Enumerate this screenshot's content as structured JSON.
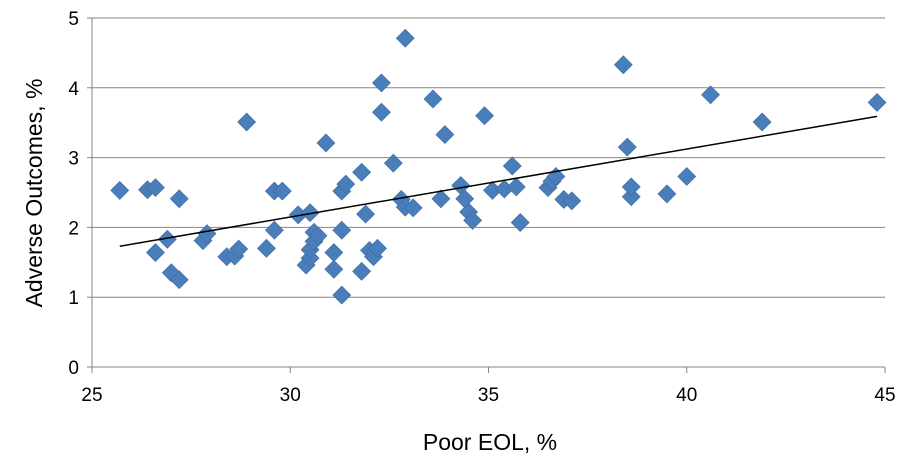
{
  "chart_data": {
    "type": "scatter",
    "xlabel": "Poor EOL, %",
    "ylabel": "Adverse Outcomes, %",
    "xlim": [
      25,
      45
    ],
    "ylim": [
      0,
      5
    ],
    "xticks": [
      "25",
      "30",
      "35",
      "40",
      "45"
    ],
    "yticks": [
      "0",
      "1",
      "2",
      "3",
      "4",
      "5"
    ],
    "grid": "horizontal",
    "marker": "diamond",
    "marker_color": "#4A7EBB",
    "trendline": {
      "type": "linear",
      "color": "#000000",
      "x": [
        25.7,
        44.8
      ],
      "y": [
        1.73,
        3.59
      ]
    },
    "points": [
      {
        "x": 25.7,
        "y": 2.53
      },
      {
        "x": 26.4,
        "y": 2.54
      },
      {
        "x": 26.6,
        "y": 2.57
      },
      {
        "x": 26.6,
        "y": 1.64
      },
      {
        "x": 26.9,
        "y": 1.83
      },
      {
        "x": 27.0,
        "y": 1.35
      },
      {
        "x": 27.2,
        "y": 1.25
      },
      {
        "x": 27.2,
        "y": 2.41
      },
      {
        "x": 27.8,
        "y": 1.81
      },
      {
        "x": 27.9,
        "y": 1.91
      },
      {
        "x": 28.4,
        "y": 1.58
      },
      {
        "x": 28.6,
        "y": 1.59
      },
      {
        "x": 28.7,
        "y": 1.69
      },
      {
        "x": 28.9,
        "y": 3.51
      },
      {
        "x": 29.4,
        "y": 1.7
      },
      {
        "x": 29.6,
        "y": 2.52
      },
      {
        "x": 29.6,
        "y": 1.96
      },
      {
        "x": 29.8,
        "y": 2.52
      },
      {
        "x": 30.2,
        "y": 2.18
      },
      {
        "x": 30.4,
        "y": 1.46
      },
      {
        "x": 30.5,
        "y": 2.21
      },
      {
        "x": 30.5,
        "y": 1.56
      },
      {
        "x": 30.5,
        "y": 1.68
      },
      {
        "x": 30.6,
        "y": 1.93
      },
      {
        "x": 30.6,
        "y": 1.8
      },
      {
        "x": 30.7,
        "y": 1.88
      },
      {
        "x": 30.9,
        "y": 3.21
      },
      {
        "x": 31.1,
        "y": 1.64
      },
      {
        "x": 31.1,
        "y": 1.4
      },
      {
        "x": 31.3,
        "y": 1.03
      },
      {
        "x": 31.3,
        "y": 1.96
      },
      {
        "x": 31.3,
        "y": 2.52
      },
      {
        "x": 31.4,
        "y": 2.62
      },
      {
        "x": 31.8,
        "y": 1.37
      },
      {
        "x": 31.8,
        "y": 2.79
      },
      {
        "x": 31.9,
        "y": 2.19
      },
      {
        "x": 32.0,
        "y": 1.67
      },
      {
        "x": 32.1,
        "y": 1.58
      },
      {
        "x": 32.2,
        "y": 1.7
      },
      {
        "x": 32.3,
        "y": 4.07
      },
      {
        "x": 32.3,
        "y": 3.65
      },
      {
        "x": 32.6,
        "y": 2.92
      },
      {
        "x": 32.8,
        "y": 2.4
      },
      {
        "x": 32.9,
        "y": 4.71
      },
      {
        "x": 32.9,
        "y": 2.29
      },
      {
        "x": 33.1,
        "y": 2.28
      },
      {
        "x": 33.6,
        "y": 3.84
      },
      {
        "x": 33.8,
        "y": 2.41
      },
      {
        "x": 33.9,
        "y": 3.33
      },
      {
        "x": 34.3,
        "y": 2.6
      },
      {
        "x": 34.4,
        "y": 2.41
      },
      {
        "x": 34.5,
        "y": 2.22
      },
      {
        "x": 34.6,
        "y": 2.1
      },
      {
        "x": 34.9,
        "y": 3.6
      },
      {
        "x": 35.1,
        "y": 2.53
      },
      {
        "x": 35.4,
        "y": 2.55
      },
      {
        "x": 35.6,
        "y": 2.88
      },
      {
        "x": 35.7,
        "y": 2.58
      },
      {
        "x": 35.8,
        "y": 2.07
      },
      {
        "x": 36.5,
        "y": 2.57
      },
      {
        "x": 36.6,
        "y": 2.66
      },
      {
        "x": 36.7,
        "y": 2.73
      },
      {
        "x": 36.9,
        "y": 2.4
      },
      {
        "x": 37.1,
        "y": 2.38
      },
      {
        "x": 38.4,
        "y": 4.33
      },
      {
        "x": 38.5,
        "y": 3.15
      },
      {
        "x": 38.6,
        "y": 2.44
      },
      {
        "x": 38.6,
        "y": 2.58
      },
      {
        "x": 39.5,
        "y": 2.48
      },
      {
        "x": 40.0,
        "y": 2.73
      },
      {
        "x": 40.6,
        "y": 3.9
      },
      {
        "x": 41.9,
        "y": 3.51
      },
      {
        "x": 44.8,
        "y": 3.79
      }
    ]
  }
}
